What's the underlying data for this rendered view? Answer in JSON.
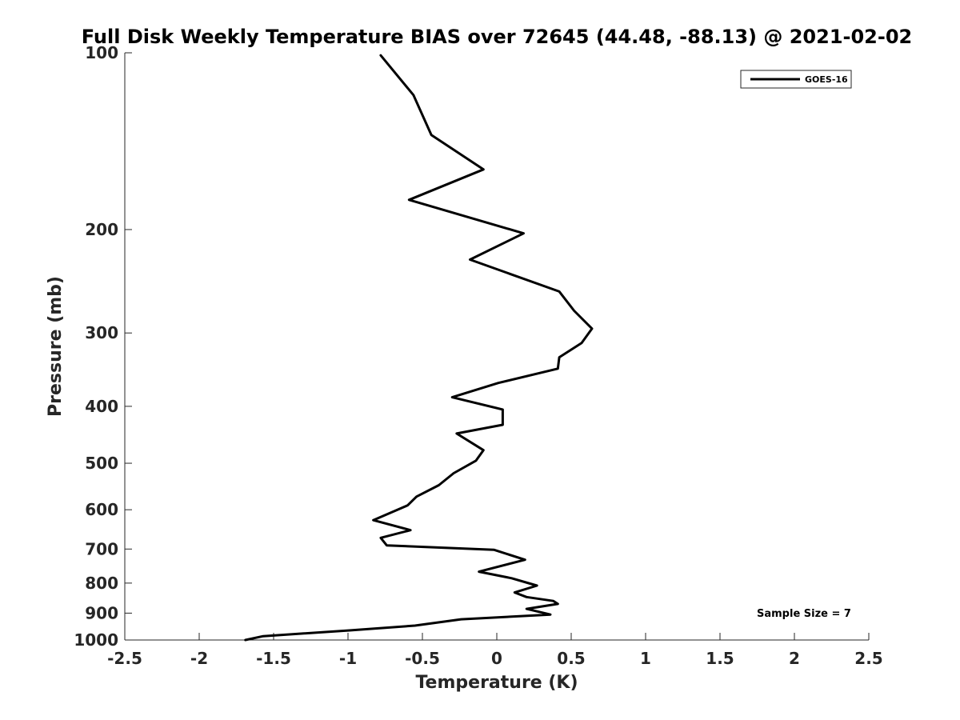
{
  "chart_data": {
    "type": "line",
    "title": "Full Disk Weekly Temperature BIAS over 72645 (44.48, -88.13) @ 2021-02-02",
    "xlabel": "Temperature (K)",
    "ylabel": "Pressure (mb)",
    "xlim": [
      -2.5,
      2.5
    ],
    "ylim": [
      1000,
      100
    ],
    "y_scale": "log",
    "y_reversed": true,
    "x_ticks": [
      -2.5,
      -2,
      -1.5,
      -1,
      -0.5,
      0,
      0.5,
      1,
      1.5,
      2,
      2.5
    ],
    "x_tick_labels": [
      "-2.5",
      "-2",
      "-1.5",
      "-1",
      "-0.5",
      "0",
      "0.5",
      "1",
      "1.5",
      "2",
      "2.5"
    ],
    "y_ticks": [
      100,
      200,
      300,
      400,
      500,
      600,
      700,
      800,
      900,
      1000
    ],
    "y_tick_labels": [
      "100",
      "200",
      "300",
      "400",
      "500",
      "600",
      "700",
      "800",
      "900",
      "1000"
    ],
    "grid": false,
    "legend": {
      "position": "top-right",
      "entries": [
        "GOES-16"
      ]
    },
    "annotation": "Sample Size = 7",
    "series": [
      {
        "name": "GOES-16",
        "color": "#000000",
        "points": [
          [
            -0.78,
            101
          ],
          [
            -0.56,
            118
          ],
          [
            -0.44,
            138
          ],
          [
            -0.09,
            158
          ],
          [
            -0.59,
            178
          ],
          [
            0.18,
            203
          ],
          [
            -0.18,
            225
          ],
          [
            0.42,
            255
          ],
          [
            0.52,
            275
          ],
          [
            0.64,
            295
          ],
          [
            0.57,
            312
          ],
          [
            0.42,
            330
          ],
          [
            0.41,
            345
          ],
          [
            0.01,
            365
          ],
          [
            -0.3,
            386
          ],
          [
            0.04,
            405
          ],
          [
            0.04,
            430
          ],
          [
            -0.27,
            445
          ],
          [
            -0.09,
            475
          ],
          [
            -0.14,
            495
          ],
          [
            -0.29,
            520
          ],
          [
            -0.39,
            545
          ],
          [
            -0.54,
            570
          ],
          [
            -0.6,
            590
          ],
          [
            -0.83,
            625
          ],
          [
            -0.58,
            650
          ],
          [
            -0.78,
            670
          ],
          [
            -0.74,
            690
          ],
          [
            -0.02,
            702
          ],
          [
            0.19,
            730
          ],
          [
            -0.12,
            765
          ],
          [
            0.1,
            785
          ],
          [
            0.27,
            808
          ],
          [
            0.12,
            830
          ],
          [
            0.2,
            845
          ],
          [
            0.38,
            858
          ],
          [
            0.41,
            868
          ],
          [
            0.2,
            885
          ],
          [
            0.36,
            905
          ],
          [
            -0.24,
            922
          ],
          [
            -0.55,
            945
          ],
          [
            -0.99,
            963
          ],
          [
            -1.57,
            985
          ],
          [
            -1.69,
            1000
          ]
        ]
      }
    ]
  }
}
